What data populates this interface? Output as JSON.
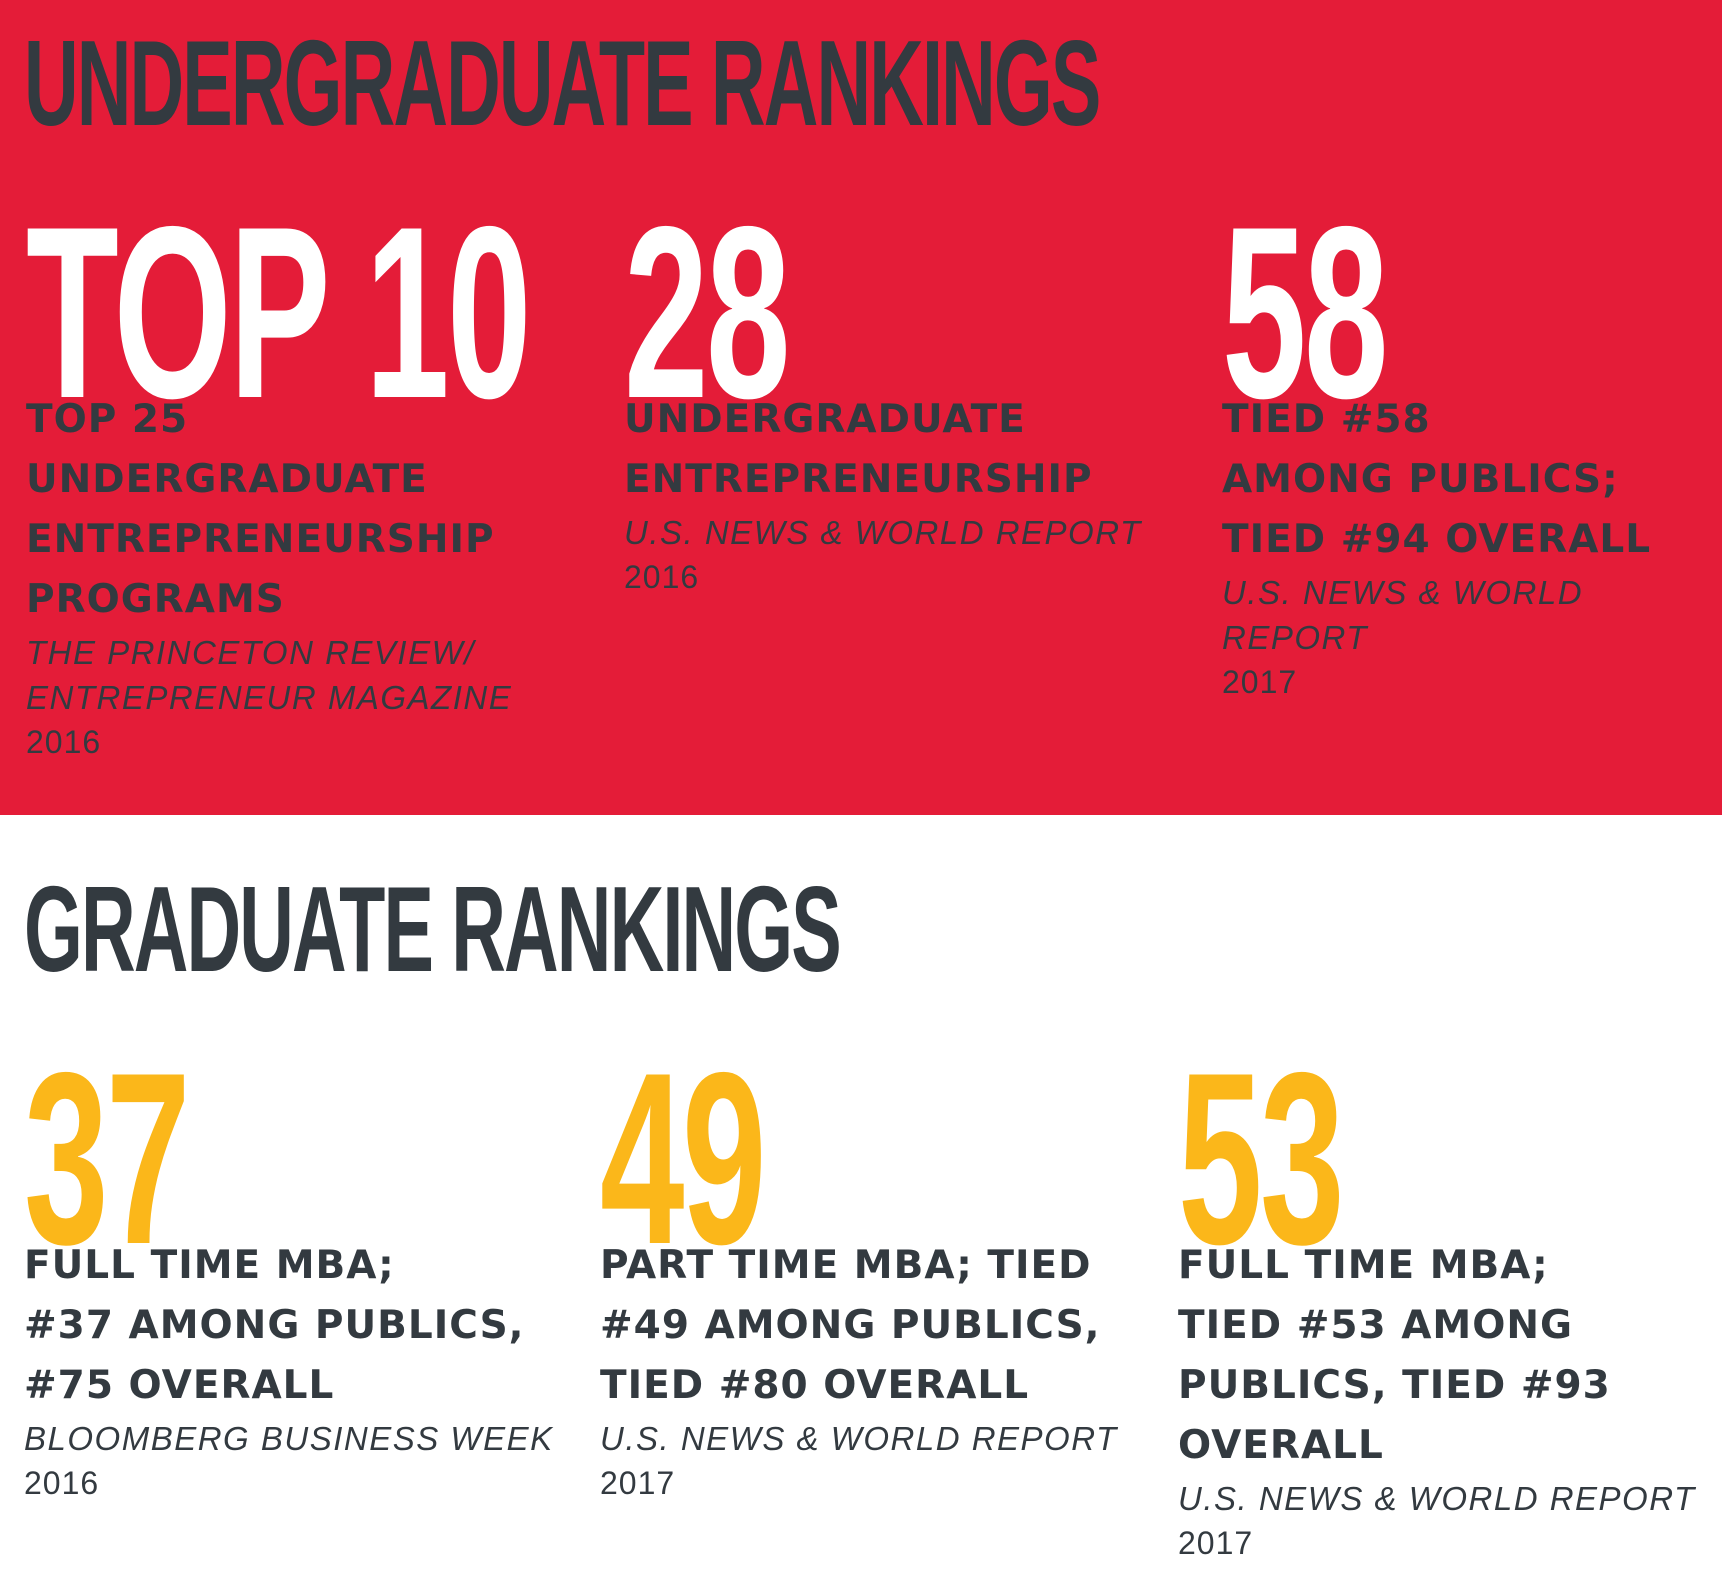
{
  "undergraduate": {
    "title": "UNDERGRADUATE RANKINGS",
    "background_color": "#e41c38",
    "stats": [
      {
        "rank": "TOP 10",
        "description": "TOP 25\nUNDERGRADUATE\nENTREPRENEURSHIP\nPROGRAMS",
        "source": "THE PRINCETON REVIEW/\nENTREPRENEUR MAGAZINE",
        "year": "2016"
      },
      {
        "rank": "28",
        "description": "UNDERGRADUATE\nENTREPRENEURSHIP",
        "source": "U.S. NEWS & WORLD REPORT",
        "year": "2016"
      },
      {
        "rank": "58",
        "description": "TIED #58\nAMONG PUBLICS;\nTIED #94 OVERALL",
        "source": "U.S. NEWS & WORLD REPORT",
        "year": "2017"
      }
    ]
  },
  "graduate": {
    "title": "GRADUATE RANKINGS",
    "accent_color": "#fbb71a",
    "stats": [
      {
        "rank": "37",
        "description": "FULL TIME MBA;\n#37 AMONG PUBLICS,\n#75 OVERALL",
        "source": "BLOOMBERG BUSINESS WEEK",
        "year": "2016"
      },
      {
        "rank": "49",
        "description": "PART TIME MBA; TIED\n#49 AMONG PUBLICS,\nTIED #80 OVERALL",
        "source": "U.S. NEWS & WORLD REPORT",
        "year": "2017"
      },
      {
        "rank": "53",
        "description": "FULL TIME MBA;\nTIED #53 AMONG\nPUBLICS, TIED #93\nOVERALL",
        "source": "U.S. NEWS & WORLD REPORT",
        "year": "2017"
      }
    ]
  },
  "text_color": "#333a40"
}
